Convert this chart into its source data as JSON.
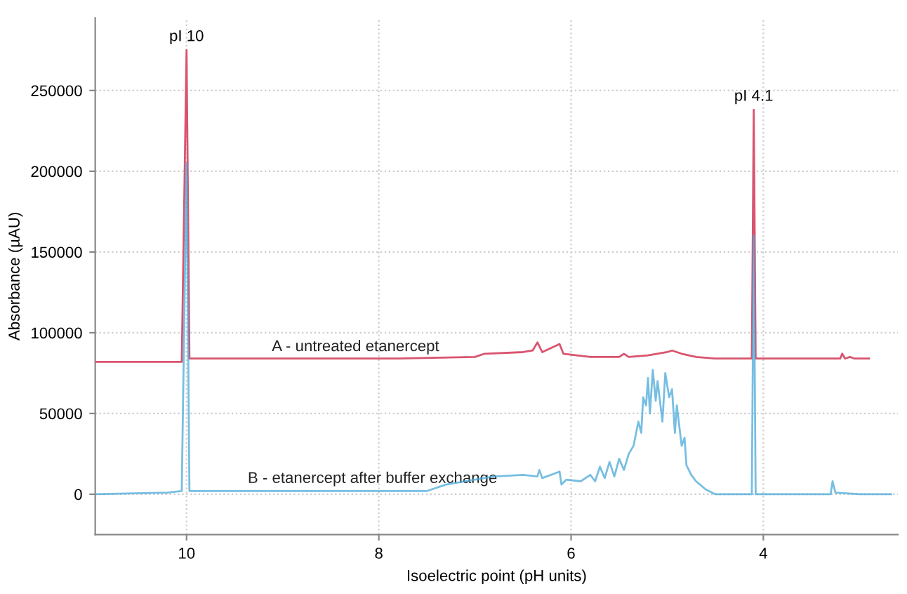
{
  "chart_data": {
    "type": "line",
    "xlabel": "Isoelectric point (pH units)",
    "ylabel": "Absorbance (µAU)",
    "xlim": [
      10.95,
      2.6
    ],
    "ylim": [
      -25000,
      295000
    ],
    "xticks": [
      10,
      8,
      6,
      4
    ],
    "yticks": [
      0,
      50000,
      100000,
      150000,
      200000,
      250000
    ],
    "grid": true,
    "legend": false,
    "marker": "none",
    "line_style": "solid",
    "annotations": [
      {
        "text": "pI 10",
        "x": 10,
        "y": 275000
      },
      {
        "text": "pI 4.1",
        "x": 4.1,
        "y": 238000
      }
    ],
    "series": [
      {
        "name": "A - untreated etanercept",
        "color": "#d9546e",
        "x": [
          10.95,
          10.05,
          10.0,
          9.97,
          9.5,
          8.5,
          7.8,
          7.0,
          6.9,
          6.5,
          6.4,
          6.35,
          6.3,
          6.12,
          6.08,
          5.8,
          5.5,
          5.45,
          5.4,
          5.2,
          5.0,
          4.95,
          4.85,
          4.7,
          4.5,
          4.12,
          4.1,
          4.08,
          3.5,
          3.2,
          3.18,
          3.15,
          3.1,
          3.05,
          2.9
        ],
        "values": [
          82000,
          82000,
          275000,
          84000,
          84000,
          84000,
          84000,
          85000,
          87000,
          88000,
          89000,
          94000,
          88000,
          93000,
          87000,
          85000,
          85000,
          87000,
          85000,
          86000,
          88000,
          89000,
          87000,
          85000,
          84000,
          84000,
          238000,
          84000,
          84000,
          84000,
          87000,
          84000,
          85000,
          84000,
          84000
        ]
      },
      {
        "name": "B - etanercept after buffer exchange",
        "color": "#4aa8d8",
        "x": [
          10.95,
          10.2,
          10.05,
          10.0,
          9.97,
          9.0,
          8.0,
          7.5,
          7.3,
          7.0,
          6.8,
          6.5,
          6.35,
          6.33,
          6.3,
          6.12,
          6.1,
          6.05,
          5.9,
          5.8,
          5.75,
          5.7,
          5.65,
          5.6,
          5.55,
          5.5,
          5.45,
          5.4,
          5.35,
          5.3,
          5.27,
          5.25,
          5.22,
          5.2,
          5.18,
          5.15,
          5.12,
          5.1,
          5.05,
          5.02,
          4.98,
          4.95,
          4.92,
          4.9,
          4.85,
          4.82,
          4.8,
          4.75,
          4.7,
          4.6,
          4.5,
          4.2,
          4.12,
          4.1,
          4.08,
          3.85,
          3.3,
          3.28,
          3.25,
          3.0,
          2.67
        ],
        "values": [
          0,
          1000,
          2000,
          205000,
          2000,
          2000,
          2000,
          2000,
          6000,
          9000,
          11000,
          12000,
          11000,
          15000,
          10000,
          14000,
          6000,
          9000,
          8000,
          12000,
          8000,
          17000,
          10000,
          20000,
          11000,
          22000,
          15000,
          25000,
          30000,
          45000,
          38000,
          60000,
          55000,
          72000,
          50000,
          77000,
          58000,
          70000,
          45000,
          75000,
          60000,
          65000,
          38000,
          55000,
          30000,
          35000,
          18000,
          12000,
          8000,
          3000,
          0,
          0,
          0,
          160000,
          0,
          0,
          0,
          8000,
          1000,
          0,
          0
        ]
      }
    ]
  }
}
